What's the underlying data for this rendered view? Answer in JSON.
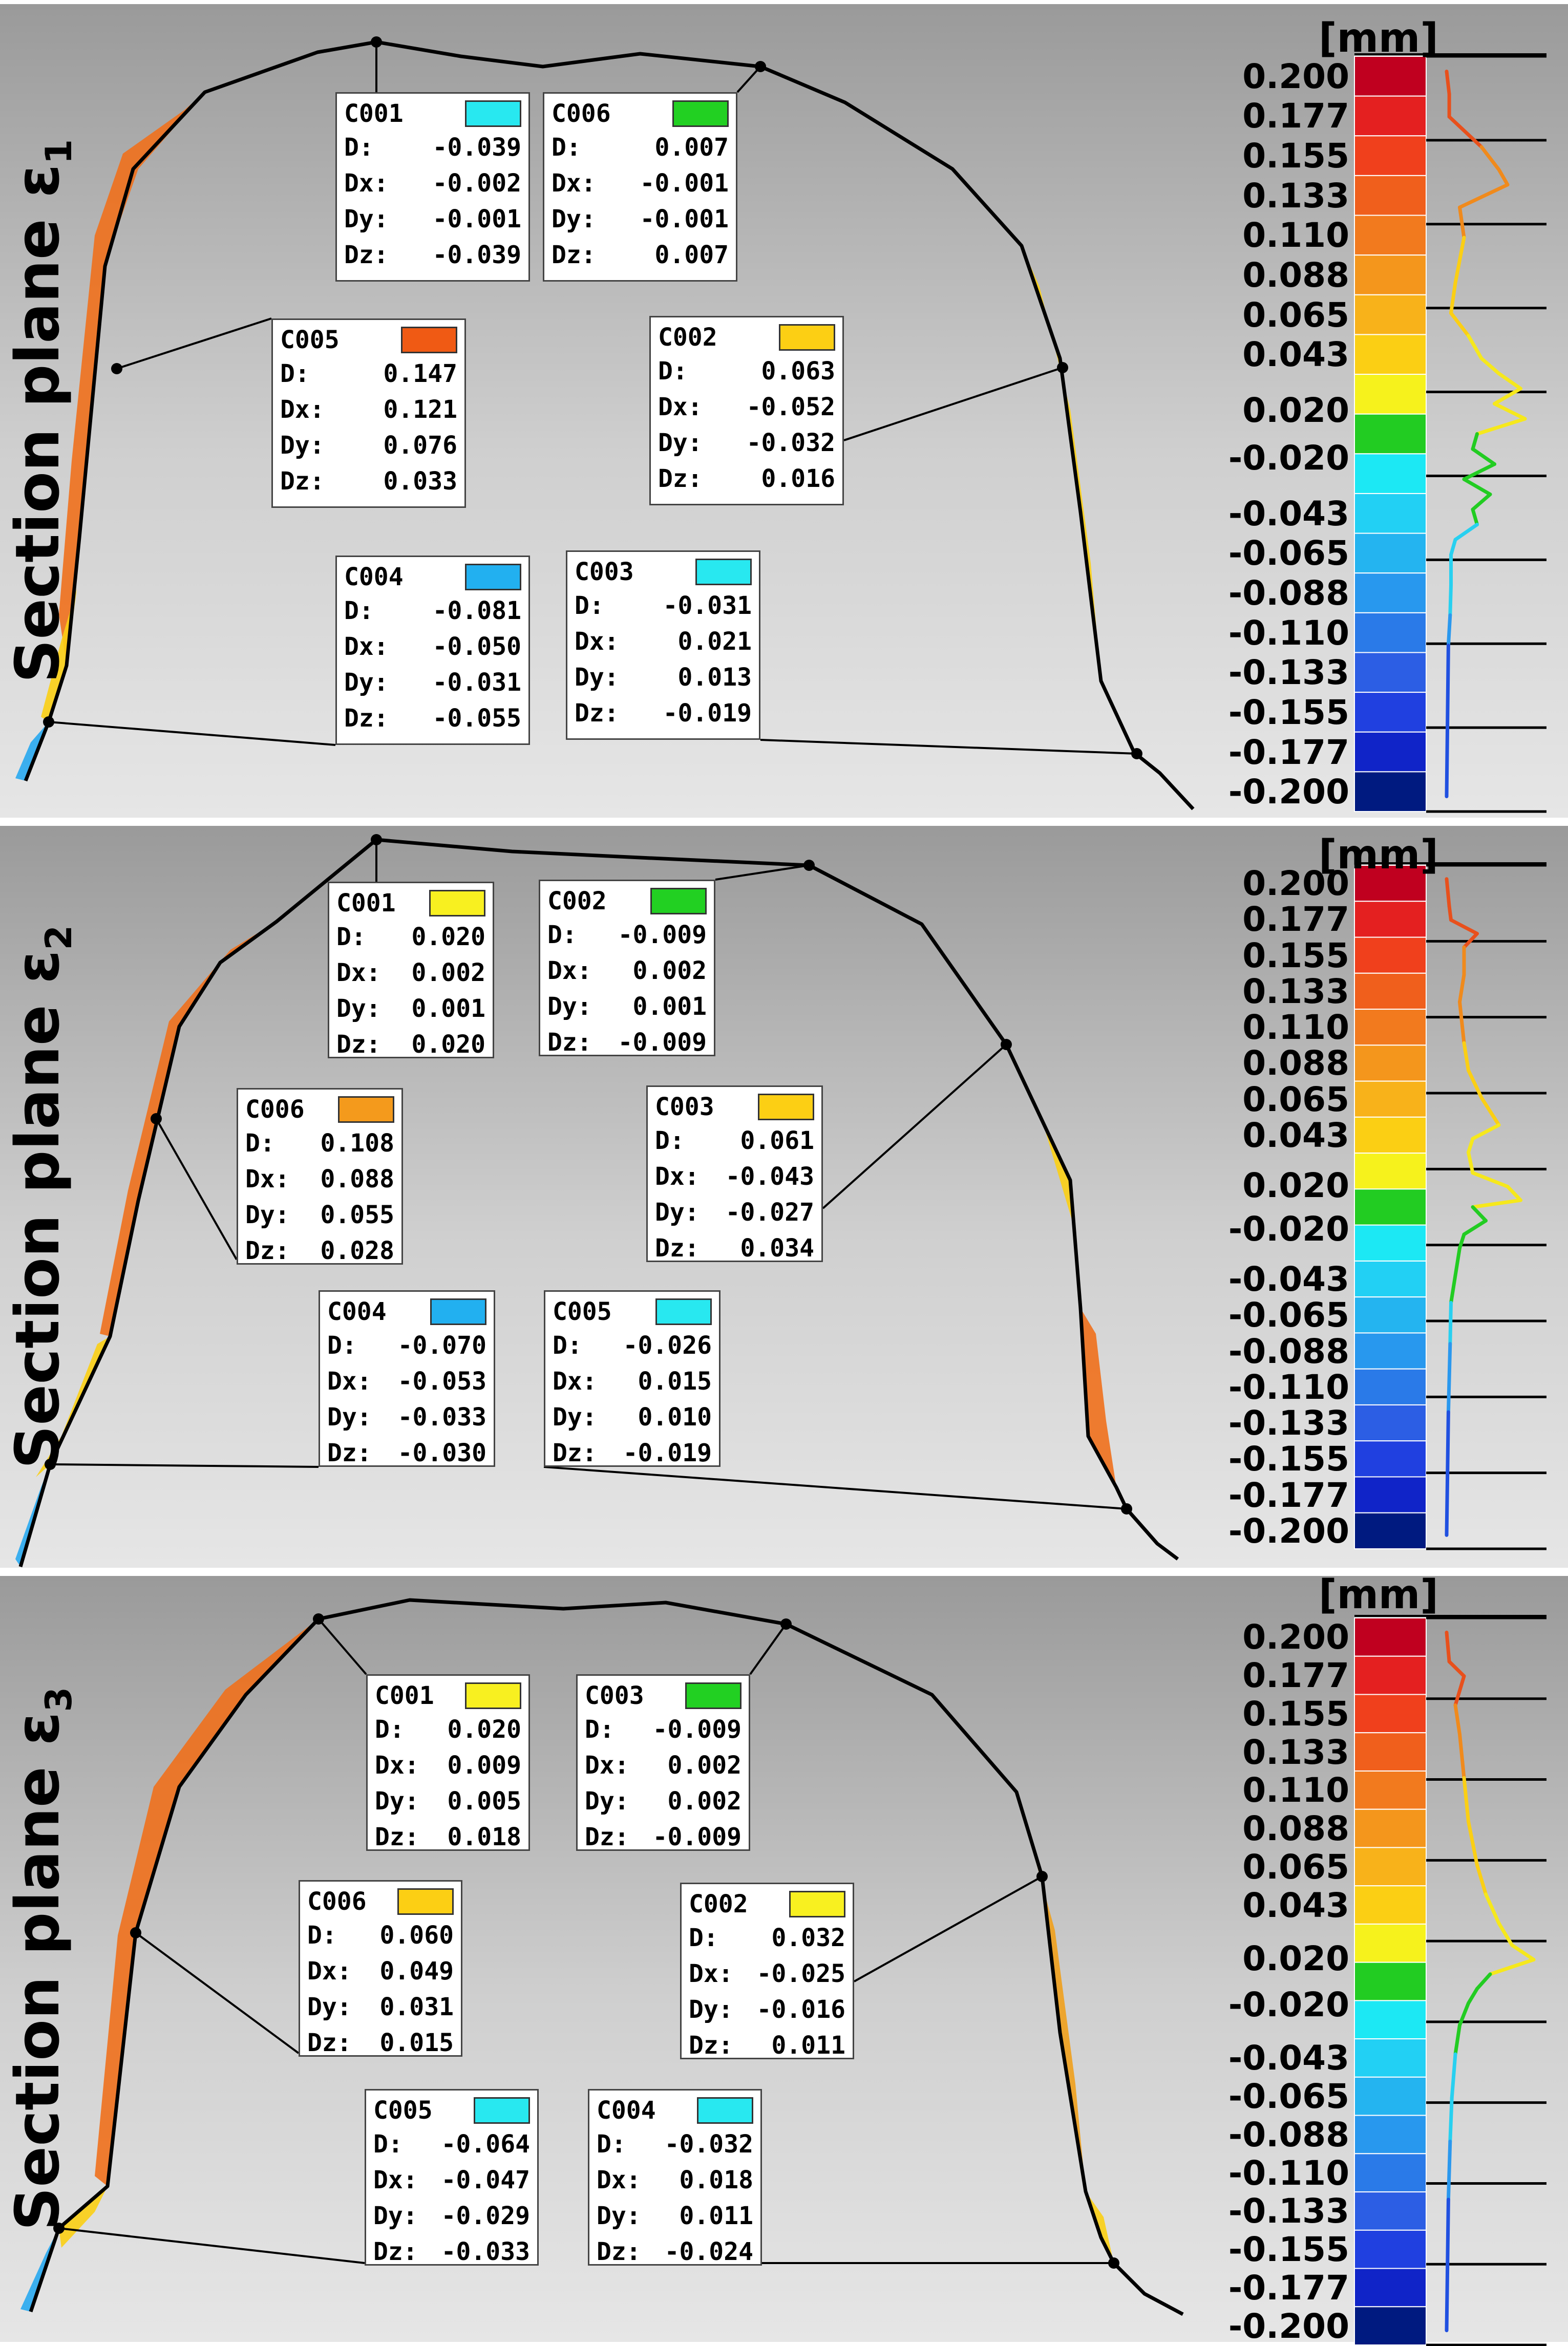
{
  "unit_label": "[mm]",
  "section_prefix": "Section plane ε",
  "scale_ticks": [
    "0.200",
    "0.177",
    "0.155",
    "0.133",
    "0.110",
    "0.088",
    "0.065",
    "0.043",
    "0.020",
    "-0.020",
    "-0.043",
    "-0.065",
    "-0.088",
    "-0.110",
    "-0.133",
    "-0.155",
    "-0.177",
    "-0.200"
  ],
  "scale_colors": [
    "#c0001f",
    "#e42020",
    "#f0401c",
    "#f05f1c",
    "#f27a1e",
    "#f4961c",
    "#f8b21a",
    "#fbcf14",
    "#f6f21c",
    "#22cc22",
    "#1ce8f4",
    "#22d0f4",
    "#24b4f0",
    "#2898ee",
    "#2a7ae8",
    "#2c5ee4",
    "#2040e0",
    "#1024c8",
    "#001a80"
  ],
  "panels": [
    {
      "subscript": "1",
      "callouts": [
        {
          "id": "C001",
          "color": "#28e8f0",
          "D": "-0.039",
          "Dx": "-0.002",
          "Dy": "-0.001",
          "Dz": "-0.039"
        },
        {
          "id": "C006",
          "color": "#22d022",
          "D": "0.007",
          "Dx": "-0.001",
          "Dy": "-0.001",
          "Dz": "0.007"
        },
        {
          "id": "C005",
          "color": "#f05a14",
          "D": "0.147",
          "Dx": "0.121",
          "Dy": "0.076",
          "Dz": "0.033"
        },
        {
          "id": "C002",
          "color": "#fccf14",
          "D": "0.063",
          "Dx": "-0.052",
          "Dy": "-0.032",
          "Dz": "0.016"
        },
        {
          "id": "C004",
          "color": "#22b0f0",
          "D": "-0.081",
          "Dx": "-0.050",
          "Dy": "-0.031",
          "Dz": "-0.055"
        },
        {
          "id": "C003",
          "color": "#28e8f0",
          "D": "-0.031",
          "Dx": "0.021",
          "Dy": "0.013",
          "Dz": "-0.019"
        }
      ]
    },
    {
      "subscript": "2",
      "callouts": [
        {
          "id": "C001",
          "color": "#f8f020",
          "D": "0.020",
          "Dx": "0.002",
          "Dy": "0.001",
          "Dz": "0.020"
        },
        {
          "id": "C002",
          "color": "#22d022",
          "D": "-0.009",
          "Dx": "0.002",
          "Dy": "0.001",
          "Dz": "-0.009"
        },
        {
          "id": "C006",
          "color": "#f49a1c",
          "D": "0.108",
          "Dx": "0.088",
          "Dy": "0.055",
          "Dz": "0.028"
        },
        {
          "id": "C003",
          "color": "#fccf14",
          "D": "0.061",
          "Dx": "-0.043",
          "Dy": "-0.027",
          "Dz": "0.034"
        },
        {
          "id": "C004",
          "color": "#22b0f0",
          "D": "-0.070",
          "Dx": "-0.053",
          "Dy": "-0.033",
          "Dz": "-0.030"
        },
        {
          "id": "C005",
          "color": "#28e8f0",
          "D": "-0.026",
          "Dx": "0.015",
          "Dy": "0.010",
          "Dz": "-0.019"
        }
      ]
    },
    {
      "subscript": "3",
      "callouts": [
        {
          "id": "C001",
          "color": "#f8f020",
          "D": "0.020",
          "Dx": "0.009",
          "Dy": "0.005",
          "Dz": "0.018"
        },
        {
          "id": "C003",
          "color": "#22d022",
          "D": "-0.009",
          "Dx": "0.002",
          "Dy": "0.002",
          "Dz": "-0.009"
        },
        {
          "id": "C006",
          "color": "#fccf14",
          "D": "0.060",
          "Dx": "0.049",
          "Dy": "0.031",
          "Dz": "0.015"
        },
        {
          "id": "C002",
          "color": "#f8f020",
          "D": "0.032",
          "Dx": "-0.025",
          "Dy": "-0.016",
          "Dz": "0.011"
        },
        {
          "id": "C005",
          "color": "#28e8f0",
          "D": "-0.064",
          "Dx": "-0.047",
          "Dy": "-0.029",
          "Dz": "-0.033"
        },
        {
          "id": "C004",
          "color": "#28e8f0",
          "D": "-0.032",
          "Dx": "0.018",
          "Dy": "0.011",
          "Dz": "-0.024"
        }
      ]
    }
  ]
}
